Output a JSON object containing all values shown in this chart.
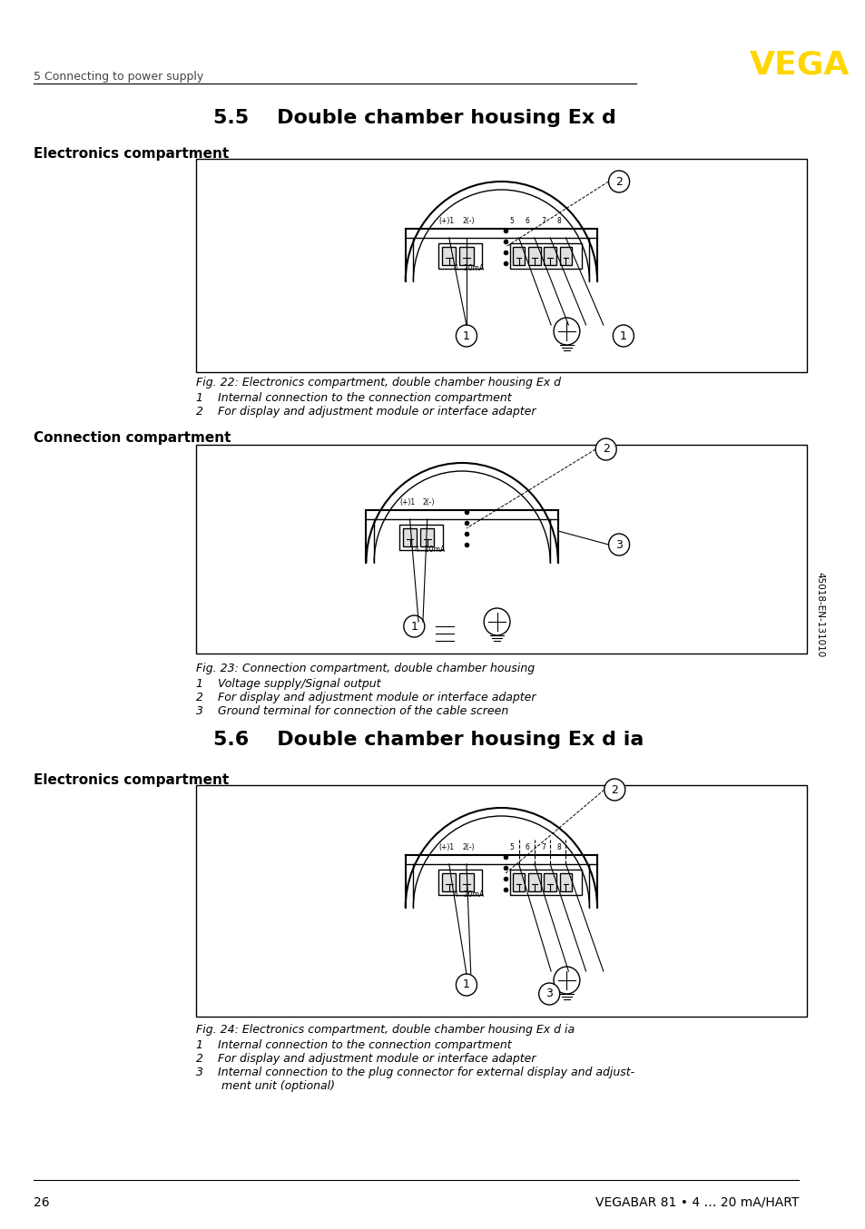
{
  "page_num": "26",
  "footer_text": "VEGABAR 81 • 4 … 20 mA/HART",
  "header_section": "5 Connecting to power supply",
  "vega_color": "#FFD700",
  "section_55_title": "5.5    Double chamber housing Ex d",
  "section_56_title": "5.6    Double chamber housing Ex d ia",
  "subsection1_label": "Electronics compartment",
  "subsection2_label": "Connection compartment",
  "fig22_caption": "Fig. 22: Electronics compartment, double chamber housing Ex d",
  "fig22_items": [
    "1    Internal connection to the connection compartment",
    "2    For display and adjustment module or interface adapter"
  ],
  "fig23_caption": "Fig. 23: Connection compartment, double chamber housing",
  "fig23_items": [
    "1    Voltage supply/Signal output",
    "2    For display and adjustment module or interface adapter",
    "3    Ground terminal for connection of the cable screen"
  ],
  "fig24_caption": "Fig. 24: Electronics compartment, double chamber housing Ex d ia",
  "fig24_items": [
    "1    Internal connection to the connection compartment",
    "2    For display and adjustment module or interface adapter",
    "3    Internal connection to the plug connector for external display and adjust-\n       ment unit (optional)"
  ],
  "bg_color": "#FFFFFF",
  "text_color": "#000000",
  "line_color": "#000000",
  "diagram_bg": "#FFFFFF",
  "diagram_border": "#000000"
}
